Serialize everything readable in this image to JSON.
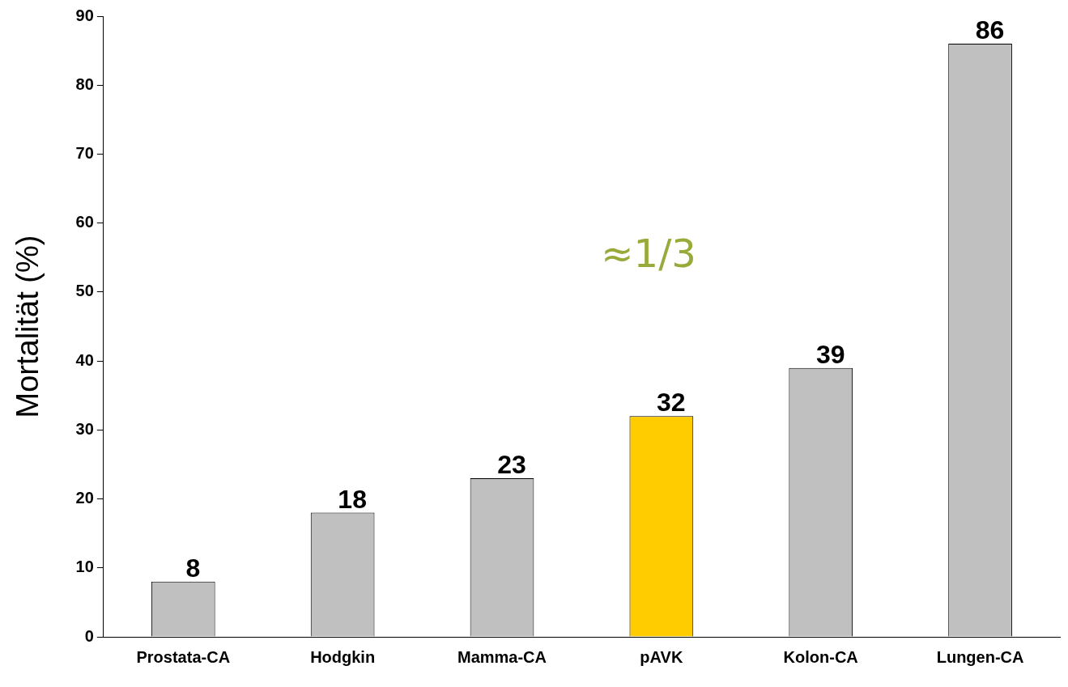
{
  "chart_data": {
    "type": "bar",
    "ylabel": "Mortalität (%)",
    "categories": [
      "Prostata-CA",
      "Hodgkin",
      "Mamma-CA",
      "pAVK",
      "Kolon-CA",
      "Lungen-CA"
    ],
    "values": [
      8,
      18,
      23,
      32,
      39,
      86
    ],
    "colors": [
      "#c0c0c0",
      "#c0c0c0",
      "#c0c0c0",
      "#ffcc00",
      "#c0c0c0",
      "#c0c0c0"
    ],
    "ylim": [
      0,
      90
    ],
    "yticks": [
      0,
      10,
      20,
      30,
      40,
      50,
      60,
      70,
      80,
      90
    ],
    "grid": false,
    "legend": false,
    "data_labels": true,
    "annotations": [
      "≈1/3"
    ]
  }
}
